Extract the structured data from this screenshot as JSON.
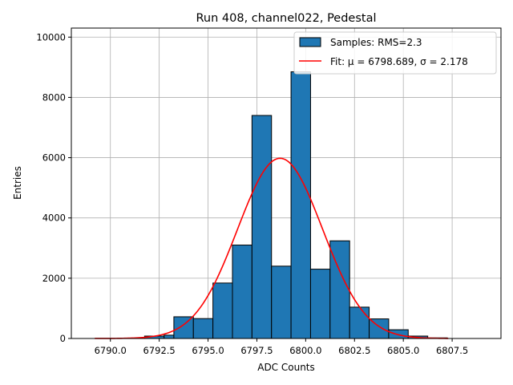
{
  "chart_data": {
    "type": "bar",
    "title": "Run 408, channel022, Pedestal",
    "xlabel": "ADC Counts",
    "ylabel": "Entries",
    "xlim": [
      6788.0,
      6810.0
    ],
    "ylim": [
      0,
      10300
    ],
    "grid": true,
    "x_ticks": [
      6790.0,
      6792.5,
      6795.0,
      6797.5,
      6800.0,
      6802.5,
      6805.0,
      6807.5
    ],
    "x_tick_labels": [
      "6790.0",
      "6792.5",
      "6795.0",
      "6797.5",
      "6800.0",
      "6802.5",
      "6805.0",
      "6807.5"
    ],
    "y_ticks": [
      0,
      2000,
      4000,
      6000,
      8000,
      10000
    ],
    "y_tick_labels": [
      "0",
      "2000",
      "4000",
      "6000",
      "8000",
      "10000"
    ],
    "bar_color": "#1f77b4",
    "bar_edge_color": "#000000",
    "fit_color": "#ff0000",
    "legend_position": "upper right",
    "legend": [
      {
        "kind": "patch",
        "label": "Samples: RMS=2.3"
      },
      {
        "kind": "line",
        "label": "Fit: μ = 6798.689, σ = 2.178"
      }
    ],
    "series": [
      {
        "name": "Samples: RMS=2.3",
        "kind": "histogram",
        "bins": [
          {
            "x0": 6790.75,
            "x1": 6791.75,
            "value": 0
          },
          {
            "x0": 6791.75,
            "x1": 6792.75,
            "value": 80
          },
          {
            "x0": 6792.75,
            "x1": 6793.25,
            "value": 110
          },
          {
            "x0": 6793.25,
            "x1": 6794.25,
            "value": 720
          },
          {
            "x0": 6794.25,
            "x1": 6795.25,
            "value": 660
          },
          {
            "x0": 6795.25,
            "x1": 6796.25,
            "value": 1840
          },
          {
            "x0": 6796.25,
            "x1": 6797.25,
            "value": 3100
          },
          {
            "x0": 6797.25,
            "x1": 6798.25,
            "value": 7400
          },
          {
            "x0": 6798.25,
            "x1": 6799.25,
            "value": 2400
          },
          {
            "x0": 6799.25,
            "x1": 6800.25,
            "value": 8850
          },
          {
            "x0": 6800.25,
            "x1": 6801.25,
            "value": 2300
          },
          {
            "x0": 6801.25,
            "x1": 6802.25,
            "value": 3240
          },
          {
            "x0": 6802.25,
            "x1": 6803.25,
            "value": 1040
          },
          {
            "x0": 6803.25,
            "x1": 6804.25,
            "value": 650
          },
          {
            "x0": 6804.25,
            "x1": 6805.25,
            "value": 290
          },
          {
            "x0": 6805.25,
            "x1": 6806.25,
            "value": 80
          },
          {
            "x0": 6806.25,
            "x1": 6807.25,
            "value": 20
          }
        ]
      },
      {
        "name": "Fit: μ = 6798.689, σ = 2.178",
        "kind": "gaussian",
        "mu": 6798.689,
        "sigma": 2.178,
        "amplitude": 5980,
        "x_range": [
          6789.2,
          6807.3
        ]
      }
    ]
  }
}
